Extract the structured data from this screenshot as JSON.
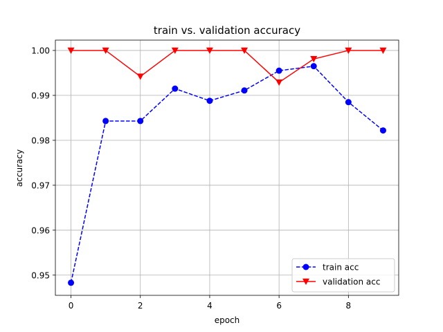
{
  "chart_data": {
    "type": "line",
    "title": "train vs. validation accuracy",
    "xlabel": "epoch",
    "ylabel": "accuracy",
    "x": [
      0,
      1,
      2,
      3,
      4,
      5,
      6,
      7,
      8,
      9
    ],
    "xlim": [
      -0.45,
      9.45
    ],
    "ylim": [
      0.9455,
      1.0023
    ],
    "xticks": [
      0,
      2,
      4,
      6,
      8
    ],
    "yticks": [
      0.95,
      0.96,
      0.97,
      0.98,
      0.99,
      1.0
    ],
    "xtick_labels": [
      "0",
      "2",
      "4",
      "6",
      "8"
    ],
    "ytick_labels": [
      "0.95",
      "0.96",
      "0.97",
      "0.98",
      "0.99",
      "1.00"
    ],
    "grid": true,
    "legend_position": "lower-right",
    "series": [
      {
        "name": "train acc",
        "values": [
          0.9483,
          0.9843,
          0.9843,
          0.9915,
          0.9888,
          0.9911,
          0.9955,
          0.9965,
          0.9885,
          0.9822
        ],
        "color": "#0000ff",
        "line_style": "dashed",
        "marker": "circle"
      },
      {
        "name": "validation acc",
        "values": [
          1.0,
          1.0,
          0.9942,
          1.0,
          1.0,
          1.0,
          0.9929,
          0.9981,
          1.0,
          1.0
        ],
        "color": "#ff0000",
        "line_style": "solid",
        "marker": "triangle-down"
      }
    ]
  }
}
